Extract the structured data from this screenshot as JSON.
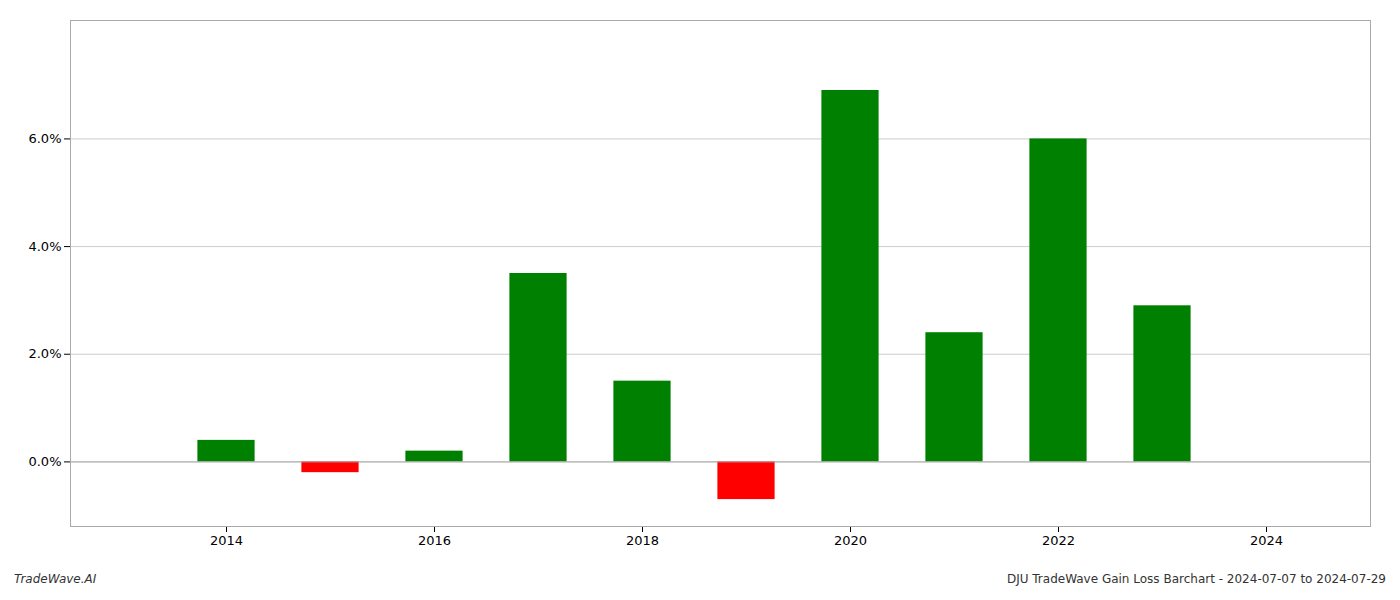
{
  "chart_data": {
    "type": "bar",
    "x": [
      2014,
      2015,
      2016,
      2017,
      2018,
      2019,
      2020,
      2021,
      2022,
      2023
    ],
    "values": [
      0.004,
      -0.002,
      0.002,
      0.035,
      0.015,
      -0.007,
      0.069,
      0.024,
      0.06,
      0.029
    ],
    "colors": [
      "#008000",
      "#ff0000",
      "#008000",
      "#008000",
      "#008000",
      "#ff0000",
      "#008000",
      "#008000",
      "#008000",
      "#008000"
    ],
    "xlim": [
      2012.5,
      2025.0
    ],
    "xticks": [
      2014,
      2016,
      2018,
      2020,
      2022,
      2024
    ],
    "ylim": [
      -0.012,
      0.082
    ],
    "yticks": [
      {
        "value": 0.0,
        "label": "0.0%"
      },
      {
        "value": 0.02,
        "label": "2.0%"
      },
      {
        "value": 0.04,
        "label": "4.0%"
      },
      {
        "value": 0.06,
        "label": "6.0%"
      }
    ],
    "grid": true,
    "annotations": [
      "TradeWave.AI",
      "DJU TradeWave Gain Loss Barchart - 2024-07-07 to 2024-07-29"
    ]
  }
}
